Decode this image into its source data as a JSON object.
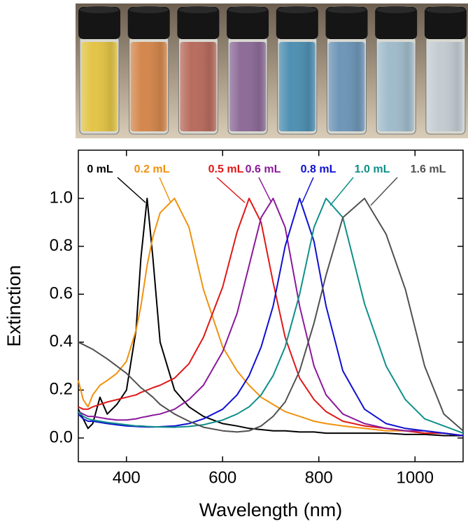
{
  "chart_data": {
    "type": "line",
    "xlabel": "Wavelength (nm)",
    "ylabel": "Extinction",
    "x": [
      300,
      310,
      320,
      330,
      345,
      360,
      380,
      400,
      420,
      430,
      443,
      455,
      470,
      500,
      530,
      560,
      600,
      630,
      655,
      680,
      705,
      730,
      760,
      790,
      815,
      850,
      895,
      940,
      980,
      1020,
      1060,
      1100
    ],
    "series": [
      {
        "name": "0 mL",
        "color": "#000000",
        "values": [
          0.12,
          0.08,
          0.04,
          0.06,
          0.17,
          0.1,
          0.14,
          0.2,
          0.45,
          0.75,
          1.0,
          0.75,
          0.4,
          0.2,
          0.13,
          0.09,
          0.06,
          0.05,
          0.04,
          0.035,
          0.03,
          0.03,
          0.025,
          0.025,
          0.02,
          0.02,
          0.02,
          0.02,
          0.015,
          0.015,
          0.01,
          0.01
        ]
      },
      {
        "name": "0.2 mL",
        "color": "#f0920f",
        "values": [
          0.24,
          0.16,
          0.13,
          0.18,
          0.22,
          0.24,
          0.27,
          0.32,
          0.45,
          0.55,
          0.72,
          0.84,
          0.94,
          1.0,
          0.88,
          0.62,
          0.38,
          0.28,
          0.22,
          0.17,
          0.14,
          0.11,
          0.09,
          0.07,
          0.06,
          0.05,
          0.04,
          0.03,
          0.03,
          0.02,
          0.02,
          0.01
        ]
      },
      {
        "name": "0.5 mL",
        "color": "#e01818",
        "values": [
          0.13,
          0.12,
          0.12,
          0.13,
          0.14,
          0.15,
          0.16,
          0.17,
          0.18,
          0.19,
          0.2,
          0.21,
          0.22,
          0.25,
          0.31,
          0.42,
          0.63,
          0.86,
          1.0,
          0.9,
          0.65,
          0.42,
          0.25,
          0.16,
          0.11,
          0.07,
          0.05,
          0.04,
          0.03,
          0.02,
          0.02,
          0.01
        ]
      },
      {
        "name": "0.6 mL",
        "color": "#8a1a9a",
        "values": [
          0.11,
          0.1,
          0.09,
          0.09,
          0.085,
          0.08,
          0.075,
          0.075,
          0.08,
          0.085,
          0.09,
          0.095,
          0.1,
          0.12,
          0.16,
          0.22,
          0.36,
          0.52,
          0.72,
          0.92,
          1.0,
          0.88,
          0.55,
          0.3,
          0.18,
          0.1,
          0.06,
          0.04,
          0.03,
          0.03,
          0.02,
          0.01
        ]
      },
      {
        "name": "0.8 mL",
        "color": "#1010d0",
        "values": [
          0.1,
          0.08,
          0.07,
          0.07,
          0.065,
          0.06,
          0.055,
          0.05,
          0.048,
          0.047,
          0.046,
          0.046,
          0.047,
          0.05,
          0.06,
          0.08,
          0.12,
          0.18,
          0.26,
          0.38,
          0.55,
          0.8,
          1.0,
          0.82,
          0.55,
          0.28,
          0.12,
          0.06,
          0.04,
          0.03,
          0.02,
          0.01
        ]
      },
      {
        "name": "1.0 mL",
        "color": "#0f8f8a",
        "values": [
          0.11,
          0.09,
          0.08,
          0.075,
          0.07,
          0.065,
          0.06,
          0.055,
          0.05,
          0.05,
          0.048,
          0.047,
          0.046,
          0.045,
          0.048,
          0.055,
          0.075,
          0.1,
          0.13,
          0.18,
          0.26,
          0.38,
          0.6,
          0.88,
          1.0,
          0.92,
          0.56,
          0.3,
          0.16,
          0.08,
          0.05,
          0.02
        ]
      },
      {
        "name": "1.6 mL",
        "color": "#505050",
        "values": [
          0.4,
          0.39,
          0.38,
          0.37,
          0.35,
          0.33,
          0.3,
          0.27,
          0.23,
          0.21,
          0.19,
          0.17,
          0.14,
          0.1,
          0.07,
          0.045,
          0.03,
          0.025,
          0.03,
          0.05,
          0.09,
          0.15,
          0.28,
          0.48,
          0.68,
          0.92,
          1.0,
          0.85,
          0.62,
          0.3,
          0.1,
          0.03
        ]
      }
    ],
    "xlim": [
      300,
      1100
    ],
    "xticks": [
      400,
      600,
      800,
      1000
    ],
    "ylim": [
      -0.1,
      1.2
    ],
    "yticks": [
      {
        "value": 0,
        "label": "0.0"
      },
      0.2,
      0.4,
      0.6,
      0.8,
      {
        "value": 1,
        "label": "1.0"
      }
    ]
  }
}
